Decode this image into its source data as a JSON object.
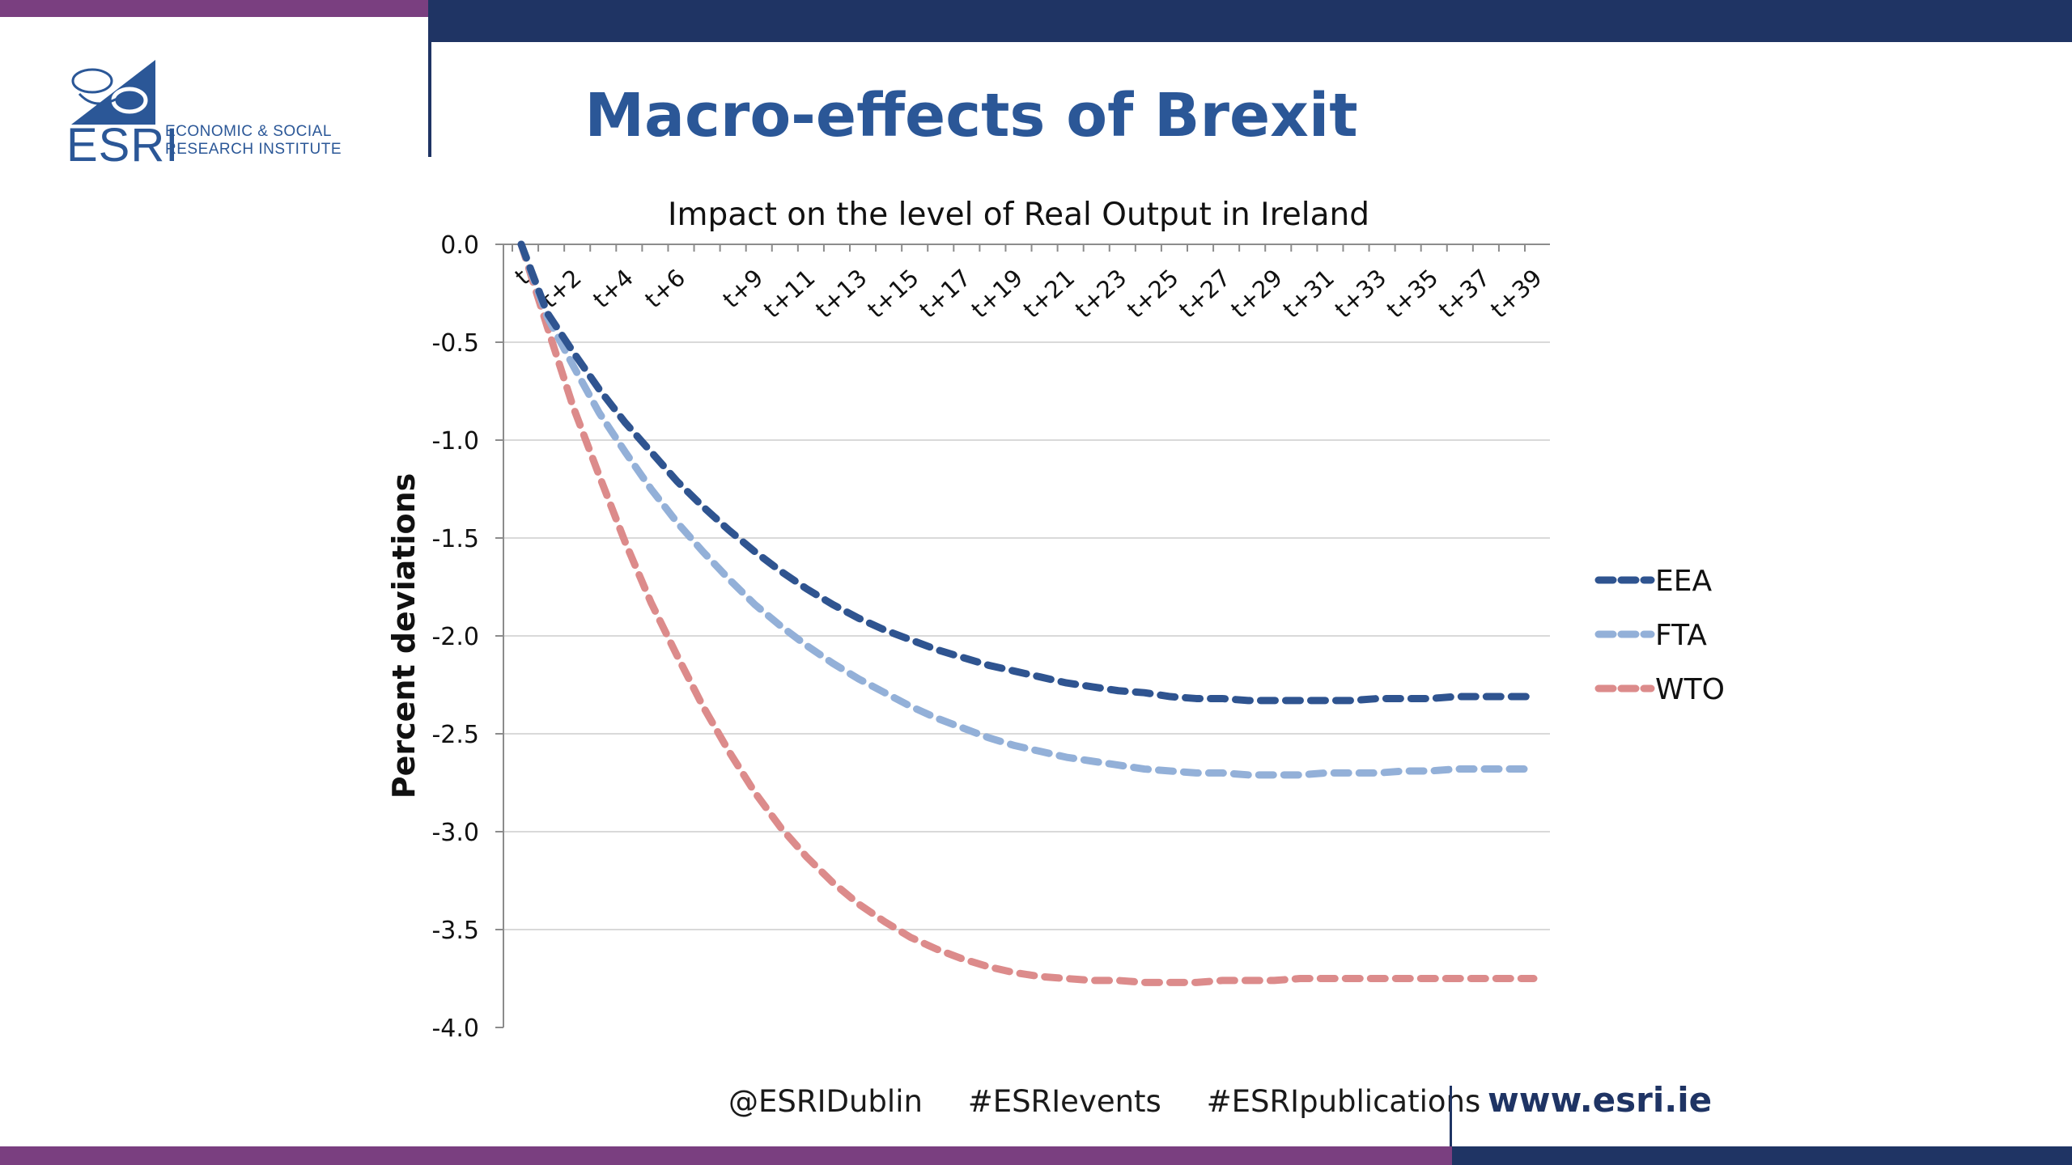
{
  "colors": {
    "purple": "#7a3f80",
    "navy": "#1f3464",
    "title_blue": "#2b5797",
    "eea": "#2f5490",
    "fta": "#93b0d8",
    "wto": "#dc8b8b",
    "grid": "#d9d9d9",
    "axis": "#8c8c8c"
  },
  "logo": {
    "text": "ESRI",
    "line1": "ECONOMIC & SOCIAL",
    "line2": "RESEARCH INSTITUTE"
  },
  "slide": {
    "title": "Macro-effects of Brexit"
  },
  "footer": {
    "twitter": "@ESRIDublin",
    "events": "#ESRIevents",
    "publications": "#ESRIpublications",
    "url": "www.esri.ie"
  },
  "chart_data": {
    "type": "line",
    "title": "Impact on the level of Real Output in Ireland",
    "ylabel": "Percent deviations",
    "xlabel": "",
    "ylim": [
      -4.0,
      0.0
    ],
    "y_ticks": [
      "0.0",
      "-0.5",
      "-1.0",
      "-1.5",
      "-2.0",
      "-2.5",
      "-3.0",
      "-3.5",
      "-4.0"
    ],
    "x_categories": [
      "t",
      "t+1",
      "t+2",
      "t+3",
      "t+4",
      "t+5",
      "t+6",
      "t+7",
      "t+8",
      "t+9",
      "t+10",
      "t+11",
      "t+12",
      "t+13",
      "t+14",
      "t+15",
      "t+16",
      "t+17",
      "t+18",
      "t+19",
      "t+20",
      "t+21",
      "t+22",
      "t+23",
      "t+24",
      "t+25",
      "t+26",
      "t+27",
      "t+28",
      "t+29",
      "t+30",
      "t+31",
      "t+32",
      "t+33",
      "t+34",
      "t+35",
      "t+36",
      "t+37",
      "t+38",
      "t+39"
    ],
    "x_tick_labels": [
      "t",
      "t+2",
      "t+4",
      "t+6",
      "t+9",
      "t+11",
      "t+13",
      "t+15",
      "t+17",
      "t+19",
      "t+21",
      "t+23",
      "t+25",
      "t+27",
      "t+29",
      "t+31",
      "t+33",
      "t+35",
      "t+37",
      "t+39"
    ],
    "grid": true,
    "legend_position": "right",
    "series": [
      {
        "name": "EEA",
        "color": "#2f5490",
        "values": [
          0.0,
          -0.35,
          -0.55,
          -0.74,
          -0.91,
          -1.06,
          -1.21,
          -1.34,
          -1.46,
          -1.57,
          -1.67,
          -1.76,
          -1.84,
          -1.91,
          -1.97,
          -2.02,
          -2.07,
          -2.11,
          -2.15,
          -2.18,
          -2.21,
          -2.24,
          -2.26,
          -2.28,
          -2.29,
          -2.31,
          -2.32,
          -2.32,
          -2.33,
          -2.33,
          -2.33,
          -2.33,
          -2.33,
          -2.32,
          -2.32,
          -2.32,
          -2.31,
          -2.31,
          -2.31,
          -2.31
        ]
      },
      {
        "name": "FTA",
        "color": "#93b0d8",
        "values": [
          0.0,
          -0.37,
          -0.62,
          -0.86,
          -1.06,
          -1.25,
          -1.42,
          -1.57,
          -1.71,
          -1.84,
          -1.95,
          -2.05,
          -2.14,
          -2.22,
          -2.29,
          -2.36,
          -2.42,
          -2.47,
          -2.52,
          -2.56,
          -2.59,
          -2.62,
          -2.64,
          -2.66,
          -2.68,
          -2.69,
          -2.7,
          -2.7,
          -2.71,
          -2.71,
          -2.71,
          -2.7,
          -2.7,
          -2.7,
          -2.69,
          -2.69,
          -2.68,
          -2.68,
          -2.68,
          -2.68
        ]
      },
      {
        "name": "WTO",
        "color": "#dc8b8b",
        "values": [
          0.0,
          -0.42,
          -0.83,
          -1.18,
          -1.52,
          -1.83,
          -2.1,
          -2.36,
          -2.59,
          -2.8,
          -2.98,
          -3.13,
          -3.26,
          -3.37,
          -3.46,
          -3.54,
          -3.6,
          -3.65,
          -3.69,
          -3.72,
          -3.74,
          -3.75,
          -3.76,
          -3.76,
          -3.77,
          -3.77,
          -3.77,
          -3.76,
          -3.76,
          -3.76,
          -3.75,
          -3.75,
          -3.75,
          -3.75,
          -3.75,
          -3.75,
          -3.75,
          -3.75,
          -3.75,
          -3.75
        ]
      }
    ]
  }
}
